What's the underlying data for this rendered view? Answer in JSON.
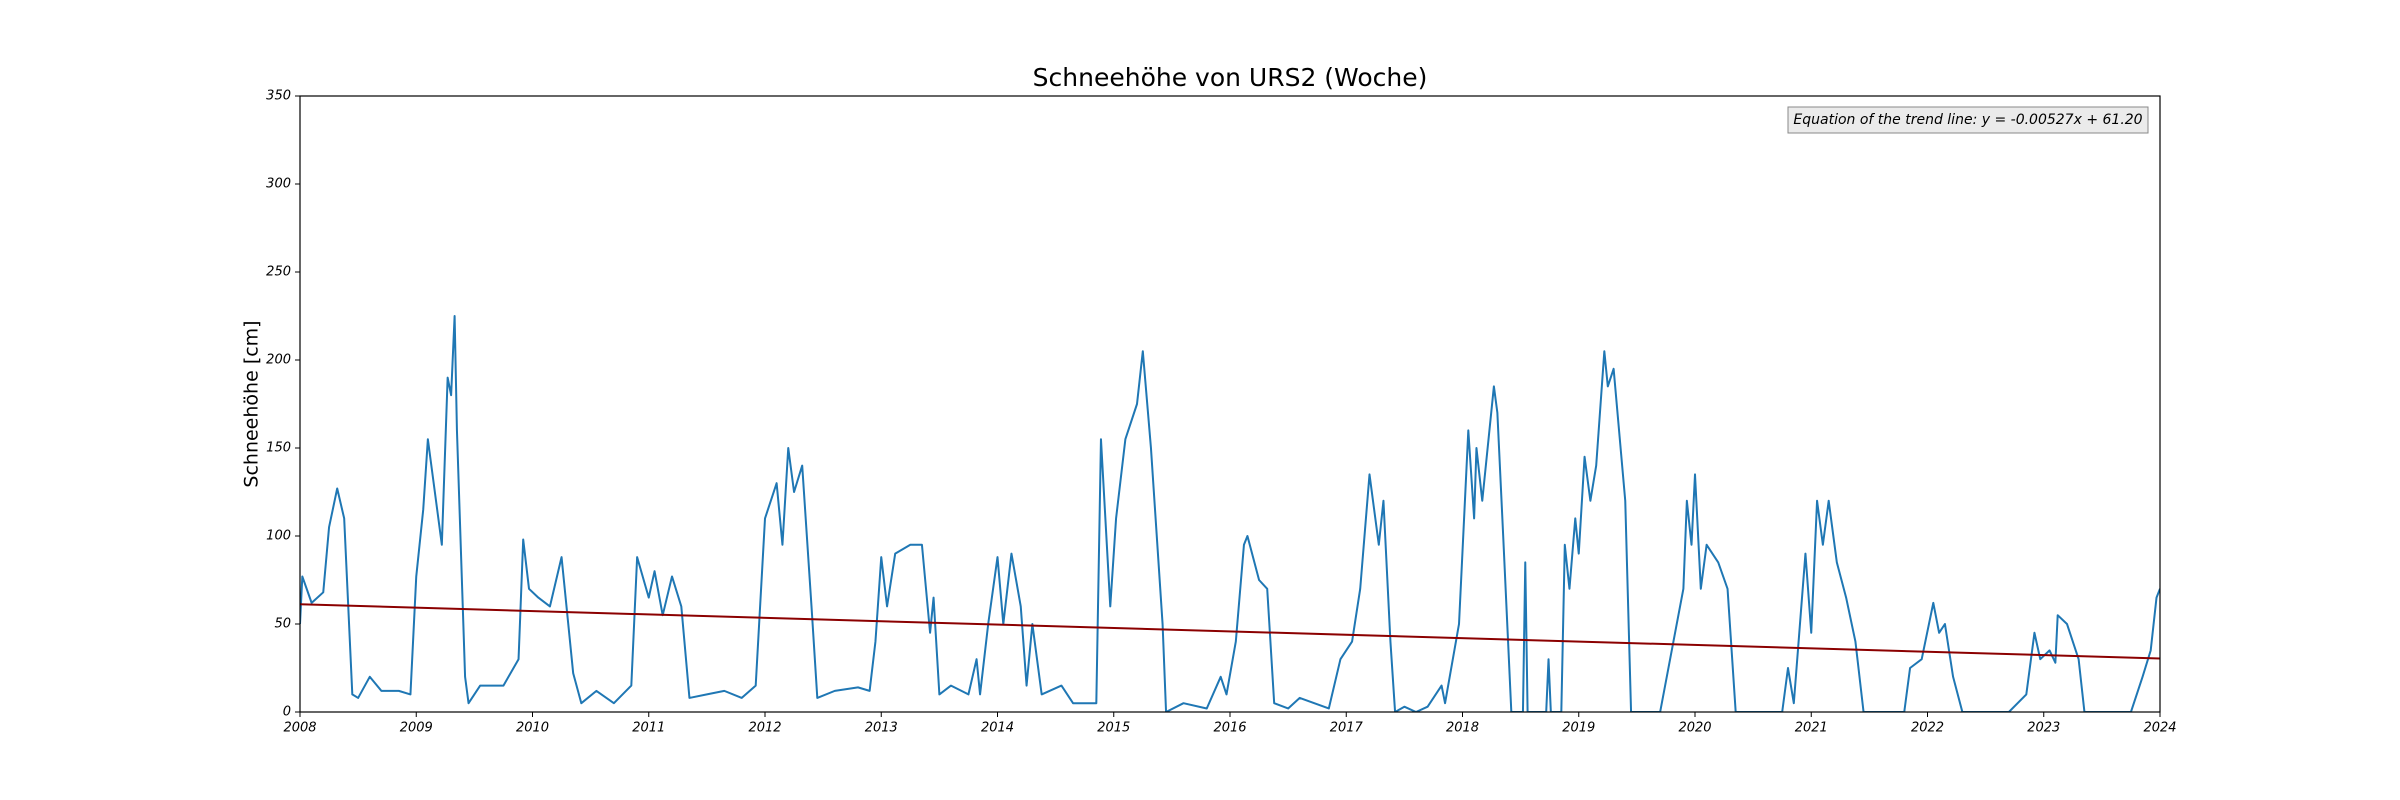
{
  "chart_data": {
    "type": "line",
    "title": "Schneehöhe von URS2 (Woche)",
    "ylabel": "Schneehöhe [cm]",
    "annotation": "Equation of the trend line: y = -0.00527x + 61.20",
    "xlim": [
      2008,
      2024
    ],
    "xticks": [
      2008,
      2009,
      2010,
      2011,
      2012,
      2013,
      2014,
      2015,
      2016,
      2017,
      2018,
      2019,
      2020,
      2021,
      2022,
      2023,
      2024
    ],
    "ylim": [
      0,
      350
    ],
    "yticks": [
      0,
      50,
      100,
      150,
      200,
      250,
      300,
      350
    ],
    "color": "#1f77b4",
    "x": [
      2008.0,
      2008.02,
      2008.1,
      2008.2,
      2008.25,
      2008.32,
      2008.38,
      2008.45,
      2008.5,
      2008.6,
      2008.7,
      2008.85,
      2008.95,
      2009.0,
      2009.06,
      2009.1,
      2009.15,
      2009.22,
      2009.27,
      2009.3,
      2009.33,
      2009.35,
      2009.42,
      2009.45,
      2009.55,
      2009.75,
      2009.88,
      2009.92,
      2009.97,
      2010.05,
      2010.15,
      2010.25,
      2010.35,
      2010.42,
      2010.55,
      2010.7,
      2010.85,
      2010.9,
      2011.0,
      2011.05,
      2011.12,
      2011.2,
      2011.28,
      2011.35,
      2011.5,
      2011.65,
      2011.8,
      2011.92,
      2012.0,
      2012.1,
      2012.15,
      2012.2,
      2012.25,
      2012.32,
      2012.4,
      2012.45,
      2012.6,
      2012.8,
      2012.9,
      2012.95,
      2013.0,
      2013.05,
      2013.12,
      2013.25,
      2013.35,
      2013.42,
      2013.45,
      2013.5,
      2013.6,
      2013.75,
      2013.82,
      2013.85,
      2013.92,
      2014.0,
      2014.05,
      2014.12,
      2014.2,
      2014.25,
      2014.3,
      2014.38,
      2014.55,
      2014.65,
      2014.85,
      2014.89,
      2014.97,
      2015.02,
      2015.1,
      2015.2,
      2015.25,
      2015.32,
      2015.42,
      2015.45,
      2015.6,
      2015.8,
      2015.92,
      2015.97,
      2016.05,
      2016.12,
      2016.15,
      2016.25,
      2016.32,
      2016.38,
      2016.5,
      2016.6,
      2016.85,
      2016.95,
      2017.05,
      2017.12,
      2017.2,
      2017.28,
      2017.32,
      2017.38,
      2017.42,
      2017.5,
      2017.6,
      2017.7,
      2017.82,
      2017.85,
      2017.97,
      2018.05,
      2018.1,
      2018.12,
      2018.17,
      2018.27,
      2018.3,
      2018.35,
      2018.42,
      2018.52,
      2018.54,
      2018.56,
      2018.72,
      2018.74,
      2018.76,
      2018.85,
      2018.88,
      2018.92,
      2018.97,
      2019.0,
      2019.05,
      2019.1,
      2019.15,
      2019.22,
      2019.25,
      2019.3,
      2019.4,
      2019.45,
      2019.7,
      2019.9,
      2019.93,
      2019.97,
      2020.0,
      2020.05,
      2020.1,
      2020.2,
      2020.28,
      2020.35,
      2020.75,
      2020.8,
      2020.85,
      2020.95,
      2021.0,
      2021.05,
      2021.1,
      2021.15,
      2021.22,
      2021.3,
      2021.38,
      2021.45,
      2021.8,
      2021.85,
      2021.95,
      2022.05,
      2022.1,
      2022.15,
      2022.22,
      2022.3,
      2022.7,
      2022.85,
      2022.92,
      2022.97,
      2023.05,
      2023.1,
      2023.12,
      2023.2,
      2023.3,
      2023.35,
      2023.75,
      2023.85,
      2023.92,
      2023.97,
      2024.0
    ],
    "values": [
      50,
      77,
      62,
      68,
      105,
      127,
      110,
      10,
      8,
      20,
      12,
      12,
      10,
      77,
      115,
      155,
      130,
      95,
      190,
      180,
      225,
      160,
      20,
      5,
      15,
      15,
      30,
      98,
      70,
      65,
      60,
      88,
      22,
      5,
      12,
      5,
      15,
      88,
      65,
      80,
      55,
      77,
      60,
      8,
      10,
      12,
      8,
      15,
      110,
      130,
      95,
      150,
      125,
      140,
      60,
      8,
      12,
      14,
      12,
      40,
      88,
      60,
      90,
      95,
      95,
      45,
      65,
      10,
      15,
      10,
      30,
      10,
      50,
      88,
      50,
      90,
      60,
      15,
      50,
      10,
      15,
      5,
      5,
      155,
      60,
      110,
      155,
      175,
      205,
      150,
      50,
      0,
      5,
      2,
      20,
      10,
      40,
      95,
      100,
      75,
      70,
      5,
      2,
      8,
      2,
      30,
      40,
      70,
      135,
      95,
      120,
      40,
      0,
      3,
      0,
      3,
      15,
      5,
      50,
      160,
      110,
      150,
      120,
      185,
      170,
      100,
      0,
      0,
      85,
      0,
      0,
      30,
      0,
      0,
      95,
      70,
      110,
      90,
      145,
      120,
      140,
      205,
      185,
      195,
      120,
      0,
      0,
      70,
      120,
      95,
      135,
      70,
      95,
      85,
      70,
      0,
      0,
      25,
      5,
      90,
      45,
      120,
      95,
      120,
      85,
      65,
      40,
      0,
      0,
      25,
      30,
      62,
      45,
      50,
      20,
      0,
      0,
      10,
      45,
      30,
      35,
      28,
      55,
      50,
      30,
      0,
      0,
      20,
      35,
      65,
      70
    ],
    "trend_line": {
      "x": [
        2008,
        2024
      ],
      "values": [
        61.2,
        30.4
      ],
      "color": "#8b0000"
    }
  }
}
